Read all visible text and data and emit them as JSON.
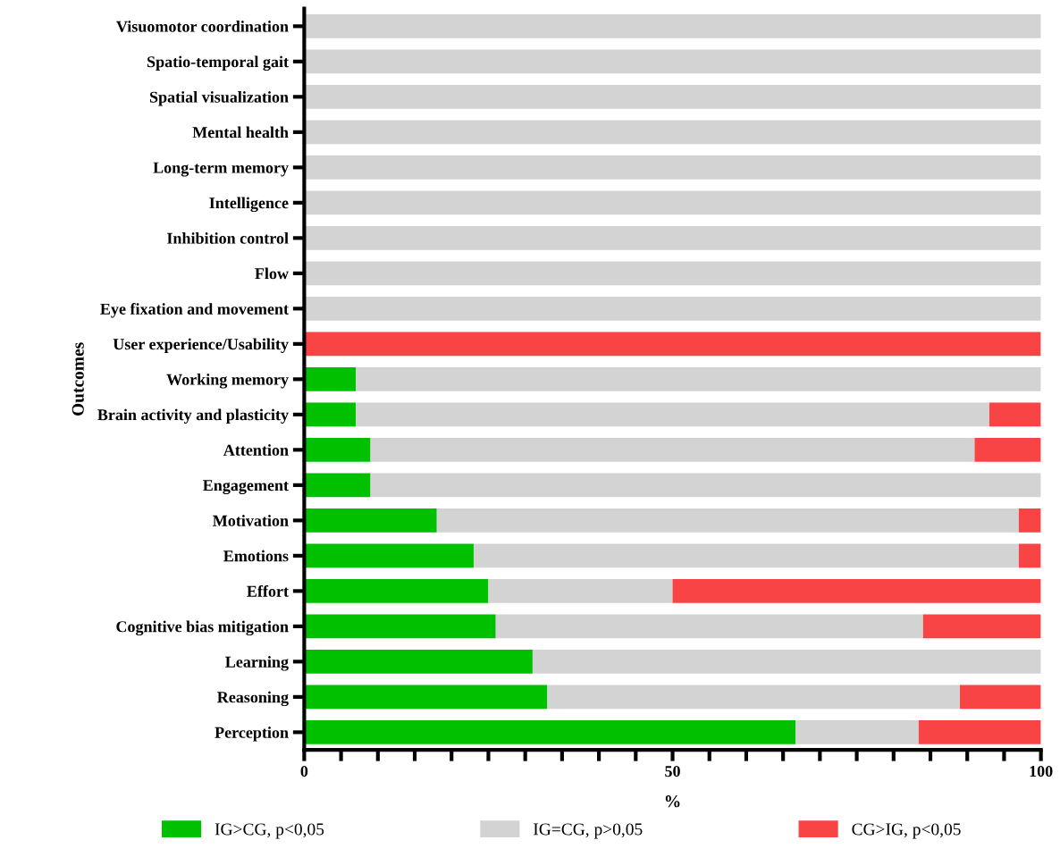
{
  "chart_data": {
    "type": "bar",
    "orientation": "horizontal",
    "stacked": true,
    "xlabel": "%",
    "ylabel": "Outcomes",
    "categories": [
      "Visuomotor coordination",
      "Spatio-temporal gait",
      "Spatial visualization",
      "Mental health",
      "Long-term memory",
      "Intelligence",
      "Inhibition control",
      "Flow",
      "Eye fixation and movement",
      "User experience/Usability",
      "Working memory",
      "Brain activity and plasticity",
      "Attention",
      "Engagement",
      "Motivation",
      "Emotions",
      "Effort",
      "Cognitive bias mitigation",
      "Learning",
      "Reasoning",
      "Perception"
    ],
    "series": [
      {
        "name": "IG>CG, p<0,05",
        "color": "#00c000",
        "values": [
          0,
          0,
          0,
          0,
          0,
          0,
          0,
          0,
          0,
          0,
          7,
          7,
          9,
          9,
          18,
          23,
          25,
          26,
          31,
          33,
          66.7
        ]
      },
      {
        "name": "IG=CG, p>0,05",
        "color": "#d3d3d3",
        "values": [
          100,
          100,
          100,
          100,
          100,
          100,
          100,
          100,
          100,
          0,
          93,
          86,
          82,
          91,
          79,
          74,
          25,
          58,
          69,
          56,
          16.7
        ]
      },
      {
        "name": "CG>IG, p<0,05",
        "color": "#f84444",
        "values": [
          0,
          0,
          0,
          0,
          0,
          0,
          0,
          0,
          0,
          100,
          0,
          7,
          9,
          0,
          3,
          3,
          50,
          16,
          0,
          11,
          16.6
        ]
      }
    ],
    "xlim": [
      0,
      100
    ],
    "xticks": [
      0,
      {
        "value": 5,
        "label": null
      },
      {
        "value": 10,
        "label": null
      },
      {
        "value": 15,
        "label": null
      },
      {
        "value": 20,
        "label": null
      },
      {
        "value": 25,
        "label": null
      },
      {
        "value": 30,
        "label": null
      },
      {
        "value": 35,
        "label": null
      },
      {
        "value": 40,
        "label": null
      },
      {
        "value": 45,
        "label": null
      },
      50,
      {
        "value": 55,
        "label": null
      },
      {
        "value": 60,
        "label": null
      },
      {
        "value": 65,
        "label": null
      },
      {
        "value": 70,
        "label": null
      },
      {
        "value": 75,
        "label": null
      },
      {
        "value": 80,
        "label": null
      },
      {
        "value": 85,
        "label": null
      },
      {
        "value": 90,
        "label": null
      },
      {
        "value": 95,
        "label": null
      },
      100
    ],
    "grid": false,
    "legend": "bottom"
  }
}
